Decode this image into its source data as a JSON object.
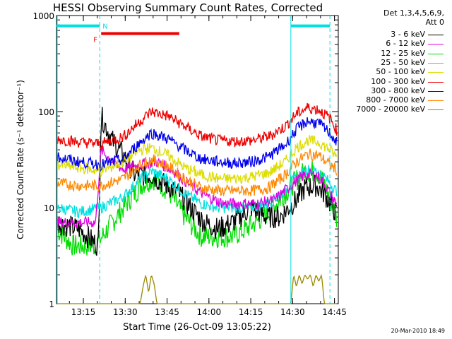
{
  "chart_data": {
    "type": "line",
    "title": "HESSI Observing Summary Count Rates, Corrected",
    "xlabel": "Start Time (26-Oct-09 13:05:22)",
    "ylabel": "Corrected Count Rate (s⁻¹ detector⁻¹)",
    "y_scale": "log",
    "ylim": [
      1,
      1000
    ],
    "xlim_minutes_after_13_05_22": [
      0,
      101
    ],
    "x_tick_labels": [
      "13:15",
      "13:30",
      "13:45",
      "14:00",
      "14:15",
      "14:30",
      "14:45"
    ],
    "y_tick_labels": [
      "1",
      "10",
      "100",
      "1000"
    ],
    "legend_header": [
      "Det 1,3,4,5,6,9,",
      "Att 0"
    ],
    "series": [
      {
        "name": "3 - 6 keV",
        "color": "#000000",
        "x": [
          0,
          8,
          15,
          16,
          20,
          24,
          28,
          34,
          38,
          43,
          48,
          53,
          58,
          63,
          70,
          75,
          80,
          86,
          89,
          93,
          96,
          101
        ],
        "y": [
          7,
          6,
          4,
          90,
          50,
          35,
          22,
          22,
          18,
          15,
          10,
          7,
          6,
          7,
          10,
          8,
          8,
          12,
          16,
          17,
          14,
          8
        ]
      },
      {
        "name": "6 - 12 keV",
        "color": "#e000e0",
        "x": [
          0,
          6,
          14,
          16,
          20,
          24,
          30,
          36,
          42,
          48,
          54,
          60,
          66,
          72,
          78,
          84,
          89,
          93,
          96,
          101
        ],
        "y": [
          7,
          7,
          7,
          40,
          30,
          25,
          28,
          30,
          24,
          17,
          13,
          11,
          11,
          11,
          12,
          17,
          22,
          22,
          18,
          10
        ]
      },
      {
        "name": "12 - 25 keV",
        "color": "#00dd00",
        "x": [
          0,
          6,
          14,
          20,
          26,
          31,
          35,
          40,
          46,
          52,
          58,
          63,
          68,
          74,
          80,
          85,
          89,
          93,
          96,
          101
        ],
        "y": [
          6,
          4,
          4,
          7,
          12,
          18,
          20,
          15,
          8,
          5,
          5,
          5,
          6,
          8,
          12,
          18,
          24,
          24,
          18,
          7
        ]
      },
      {
        "name": "25 - 50 keV",
        "color": "#00e0e0",
        "x": [
          0,
          8,
          16,
          24,
          30,
          34,
          40,
          46,
          52,
          58,
          64,
          70,
          76,
          82,
          86,
          90,
          94,
          98,
          101
        ],
        "y": [
          10,
          9,
          10,
          13,
          20,
          24,
          20,
          14,
          11,
          10,
          10,
          10,
          11,
          15,
          21,
          25,
          24,
          18,
          14
        ]
      },
      {
        "name": "50 - 100 keV",
        "color": "#dddd00",
        "x": [
          0,
          8,
          16,
          24,
          30,
          34,
          40,
          46,
          52,
          58,
          64,
          70,
          76,
          82,
          86,
          90,
          94,
          98,
          101
        ],
        "y": [
          28,
          26,
          24,
          30,
          40,
          42,
          35,
          26,
          22,
          20,
          20,
          21,
          23,
          30,
          42,
          50,
          48,
          40,
          32
        ]
      },
      {
        "name": "100 - 300 keV",
        "color": "#ee0000",
        "x": [
          0,
          8,
          16,
          24,
          30,
          34,
          40,
          46,
          52,
          58,
          64,
          70,
          76,
          82,
          86,
          90,
          94,
          98,
          101
        ],
        "y": [
          52,
          48,
          46,
          55,
          80,
          100,
          90,
          70,
          55,
          50,
          49,
          50,
          55,
          70,
          95,
          110,
          105,
          85,
          60
        ]
      },
      {
        "name": "300 - 800 keV",
        "color": "#0000ee",
        "x": [
          0,
          8,
          16,
          24,
          30,
          34,
          40,
          46,
          52,
          58,
          64,
          70,
          76,
          82,
          86,
          90,
          94,
          98,
          101
        ],
        "y": [
          34,
          30,
          28,
          32,
          48,
          60,
          52,
          40,
          32,
          30,
          29,
          30,
          34,
          45,
          65,
          80,
          75,
          60,
          45
        ]
      },
      {
        "name": "800 - 7000 keV",
        "color": "#ff8800",
        "x": [
          0,
          8,
          16,
          24,
          30,
          34,
          40,
          46,
          52,
          58,
          64,
          70,
          76,
          82,
          86,
          90,
          94,
          98,
          101
        ],
        "y": [
          18,
          17,
          17,
          20,
          28,
          32,
          27,
          20,
          16,
          15,
          15,
          15,
          16,
          22,
          30,
          36,
          35,
          28,
          24
        ]
      },
      {
        "name": "7000 - 20000 keV",
        "color": "#998800",
        "x": [
          0,
          30,
          31,
          32,
          33,
          34,
          35,
          36,
          60,
          84,
          85,
          86,
          87,
          88,
          89,
          90,
          91,
          92,
          93,
          94,
          95,
          96,
          101
        ],
        "y": [
          1,
          1,
          1.5,
          2,
          1.3,
          2,
          1.6,
          1,
          1,
          1,
          2,
          1.5,
          2,
          1.6,
          2,
          1.8,
          2,
          1.5,
          2,
          1.7,
          2,
          1,
          1
        ]
      }
    ],
    "annotations": {
      "night_flag": {
        "label": "N",
        "color": "#00e0e0",
        "intervals_minutes": [
          [
            0,
            15.5
          ],
          [
            84,
            98
          ]
        ],
        "level": 780
      },
      "flare_flag": {
        "label": "F",
        "color": "#ee0000",
        "intervals_minutes": [
          [
            16,
            44
          ]
        ],
        "level": 650
      },
      "vertical_markers_minutes": [
        15.5,
        84,
        98
      ]
    }
  },
  "footer_stamp": "20-Mar-2010 18:49"
}
